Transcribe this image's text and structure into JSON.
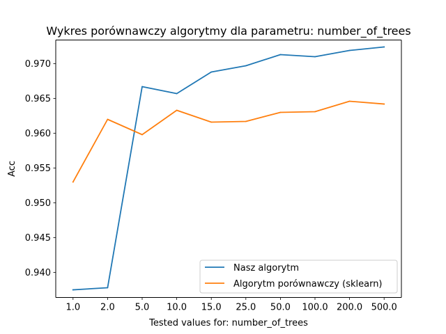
{
  "chart_data": {
    "type": "line",
    "title": "Wykres porównawczy algorytmy dla parametru: number_of_trees",
    "xlabel": "Tested values for: number_of_trees",
    "ylabel": "Acc",
    "categories": [
      "1.0",
      "2.0",
      "5.0",
      "10.0",
      "15.0",
      "25.0",
      "50.0",
      "100.0",
      "200.0",
      "500.0"
    ],
    "ylim": [
      0.9364,
      0.9734
    ],
    "yticks": [
      0.94,
      0.945,
      0.95,
      0.955,
      0.96,
      0.965,
      0.97
    ],
    "ytick_labels": [
      "0.940",
      "0.945",
      "0.950",
      "0.955",
      "0.960",
      "0.965",
      "0.970"
    ],
    "grid": false,
    "legend_position": "lower right",
    "series": [
      {
        "name": "Nasz algorytm",
        "color": "#1f77b4",
        "values": [
          0.9375,
          0.9378,
          0.9667,
          0.9657,
          0.9688,
          0.9697,
          0.9713,
          0.971,
          0.9719,
          0.9724
        ]
      },
      {
        "name": "Algorytm porównawczy (sklearn)",
        "color": "#ff7f0e",
        "values": [
          0.953,
          0.962,
          0.9598,
          0.9633,
          0.9616,
          0.9617,
          0.963,
          0.9631,
          0.9646,
          0.9642
        ]
      }
    ]
  }
}
